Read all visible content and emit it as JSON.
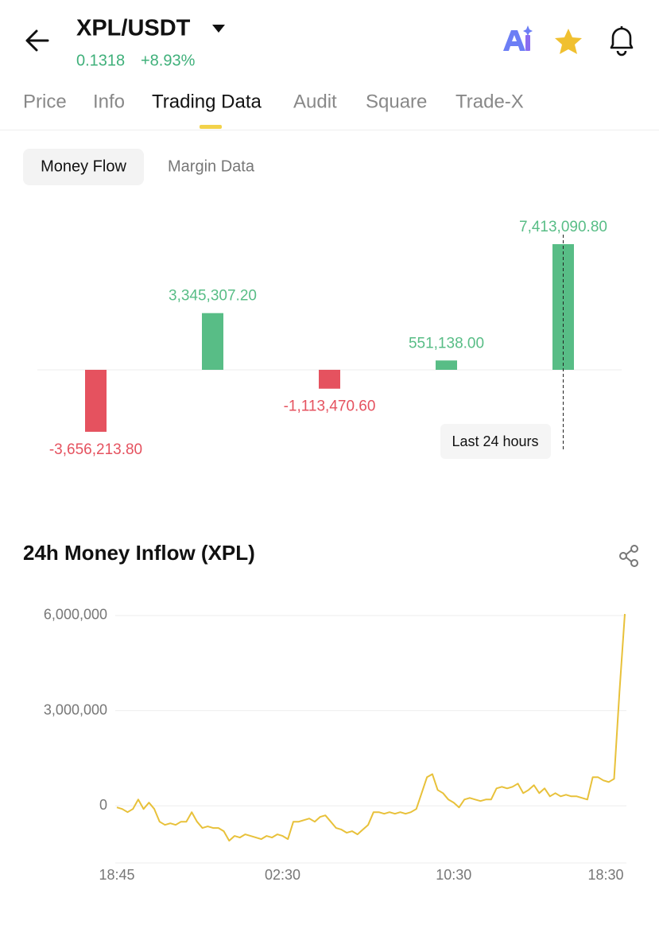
{
  "header": {
    "title": "XPL/USDT",
    "price": "0.1318",
    "change": "+8.93%"
  },
  "tabs": [
    "Price",
    "Info",
    "Trading Data",
    "Audit",
    "Square",
    "Trade-X"
  ],
  "subtabs": [
    "Money Flow",
    "Margin Data"
  ],
  "chart_data": [
    {
      "type": "bar",
      "categories": [
        null,
        null,
        null,
        null,
        null
      ],
      "values": [
        -3656213.8,
        3345307.2,
        -1113470.6,
        551138.0,
        7413090.8
      ],
      "value_labels": [
        "-3,656,213.80",
        "3,345,307.20",
        "-1,113,470.60",
        "551,138.00",
        "7,413,090.80"
      ],
      "positive_color": "#58bd86",
      "negative_color": "#e5525f",
      "annotation": "Last 24 hours"
    },
    {
      "type": "line",
      "title": "24h Money Inflow (XPL)",
      "x": [
        "18:45",
        "19:00",
        "19:15",
        "19:30",
        "19:45",
        "20:00",
        "20:15",
        "20:30",
        "20:45",
        "21:00",
        "21:15",
        "21:30",
        "21:45",
        "22:00",
        "22:15",
        "22:30",
        "22:45",
        "23:00",
        "23:15",
        "23:30",
        "23:45",
        "00:00",
        "00:15",
        "00:30",
        "00:45",
        "01:00",
        "01:15",
        "01:30",
        "01:45",
        "02:00",
        "02:15",
        "02:30",
        "02:45",
        "03:00",
        "03:15",
        "03:30",
        "03:45",
        "04:00",
        "04:15",
        "04:30",
        "04:45",
        "05:00",
        "05:15",
        "05:30",
        "05:45",
        "06:00",
        "06:15",
        "06:30",
        "06:45",
        "07:00",
        "07:15",
        "07:30",
        "07:45",
        "08:00",
        "08:15",
        "08:30",
        "08:45",
        "09:00",
        "09:15",
        "09:30",
        "09:45",
        "10:00",
        "10:15",
        "10:30",
        "10:45",
        "11:00",
        "11:15",
        "11:30",
        "11:45",
        "12:00",
        "12:15",
        "12:30",
        "12:45",
        "13:00",
        "13:15",
        "13:30",
        "13:45",
        "14:00",
        "14:15",
        "14:30",
        "14:45",
        "15:00",
        "15:15",
        "15:30",
        "15:45",
        "16:00",
        "16:15",
        "16:30",
        "16:45",
        "17:00",
        "17:15",
        "17:30",
        "17:45",
        "18:00",
        "18:15",
        "18:30"
      ],
      "xticks": [
        "18:45",
        "02:30",
        "10:30",
        "18:30"
      ],
      "series": [
        {
          "color": "#e8c13a",
          "values": [
            -50000,
            -100000,
            -200000,
            -100000,
            200000,
            -100000,
            100000,
            -100000,
            -500000,
            -600000,
            -550000,
            -600000,
            -500000,
            -500000,
            -200000,
            -500000,
            -700000,
            -650000,
            -700000,
            -700000,
            -800000,
            -1100000,
            -950000,
            -1000000,
            -900000,
            -950000,
            -1000000,
            -1050000,
            -950000,
            -1000000,
            -900000,
            -950000,
            -1050000,
            -500000,
            -500000,
            -450000,
            -400000,
            -500000,
            -350000,
            -300000,
            -500000,
            -700000,
            -750000,
            -850000,
            -800000,
            -900000,
            -750000,
            -600000,
            -200000,
            -200000,
            -250000,
            -200000,
            -250000,
            -200000,
            -250000,
            -200000,
            -100000,
            400000,
            900000,
            1000000,
            500000,
            400000,
            200000,
            100000,
            -50000,
            200000,
            250000,
            200000,
            150000,
            200000,
            200000,
            550000,
            600000,
            550000,
            600000,
            700000,
            400000,
            500000,
            650000,
            400000,
            550000,
            300000,
            400000,
            300000,
            350000,
            300000,
            300000,
            250000,
            200000,
            900000,
            900000,
            800000,
            750000,
            850000,
            3600000,
            6050000
          ]
        }
      ],
      "ylim": [
        -1800000,
        6100000
      ],
      "yticks": [
        {
          "value": 0,
          "label": "0"
        },
        {
          "value": 3000000,
          "label": "3,000,000"
        },
        {
          "value": 6000000,
          "label": "6,000,000"
        }
      ],
      "grid": true
    }
  ]
}
